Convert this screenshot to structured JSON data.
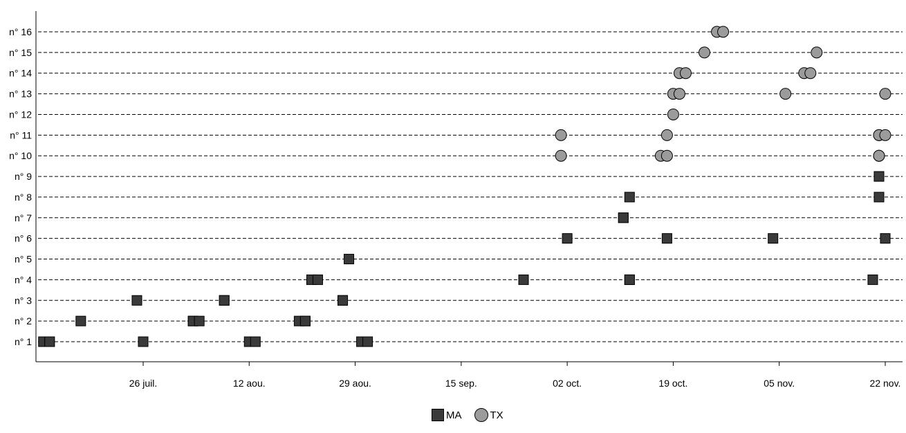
{
  "chart_data": {
    "type": "scatter",
    "title": "",
    "xlabel": "",
    "ylabel": "",
    "x_ticks": [
      "26 juil.",
      "12 aou.",
      "29 aou.",
      "15 sep.",
      "02 oct.",
      "19 oct.",
      "05 nov.",
      "22 nov."
    ],
    "x_tick_dates": [
      "07-26",
      "08-12",
      "08-29",
      "09-15",
      "10-02",
      "10-19",
      "11-05",
      "11-22"
    ],
    "x_range": [
      "07-10",
      "11-22"
    ],
    "y_categories": [
      "n° 1",
      "n° 2",
      "n° 3",
      "n° 4",
      "n° 5",
      "n° 6",
      "n° 7",
      "n° 8",
      "n° 9",
      "n° 10",
      "n° 11",
      "n° 12",
      "n° 13",
      "n° 14",
      "n° 15",
      "n° 16"
    ],
    "grid": "dashed horizontal lines",
    "legend_position": "bottom-center",
    "series": [
      {
        "name": "MA",
        "marker": "square",
        "color": "#3a3a3a",
        "points": [
          {
            "x": "07-10",
            "y": "n° 1"
          },
          {
            "x": "07-11",
            "y": "n° 1"
          },
          {
            "x": "07-11",
            "y": "n° 1"
          },
          {
            "x": "07-26",
            "y": "n° 1"
          },
          {
            "x": "08-12",
            "y": "n° 1"
          },
          {
            "x": "08-13",
            "y": "n° 1"
          },
          {
            "x": "08-30",
            "y": "n° 1"
          },
          {
            "x": "08-31",
            "y": "n° 1"
          },
          {
            "x": "07-16",
            "y": "n° 2"
          },
          {
            "x": "08-03",
            "y": "n° 2"
          },
          {
            "x": "08-03",
            "y": "n° 2"
          },
          {
            "x": "08-04",
            "y": "n° 2"
          },
          {
            "x": "08-20",
            "y": "n° 2"
          },
          {
            "x": "08-21",
            "y": "n° 2"
          },
          {
            "x": "08-21",
            "y": "n° 2"
          },
          {
            "x": "07-25",
            "y": "n° 3"
          },
          {
            "x": "08-08",
            "y": "n° 3"
          },
          {
            "x": "08-08",
            "y": "n° 3"
          },
          {
            "x": "08-27",
            "y": "n° 3"
          },
          {
            "x": "08-27",
            "y": "n° 3"
          },
          {
            "x": "08-22",
            "y": "n° 4"
          },
          {
            "x": "08-23",
            "y": "n° 4"
          },
          {
            "x": "09-25",
            "y": "n° 4"
          },
          {
            "x": "10-12",
            "y": "n° 4"
          },
          {
            "x": "10-12",
            "y": "n° 4"
          },
          {
            "x": "11-20",
            "y": "n° 4"
          },
          {
            "x": "08-28",
            "y": "n° 5"
          },
          {
            "x": "10-02",
            "y": "n° 6"
          },
          {
            "x": "10-18",
            "y": "n° 6"
          },
          {
            "x": "11-04",
            "y": "n° 6"
          },
          {
            "x": "11-22",
            "y": "n° 6"
          },
          {
            "x": "10-11",
            "y": "n° 7"
          },
          {
            "x": "10-11",
            "y": "n° 7"
          },
          {
            "x": "10-12",
            "y": "n° 8"
          },
          {
            "x": "11-21",
            "y": "n° 8"
          },
          {
            "x": "11-21",
            "y": "n° 9"
          },
          {
            "x": "11-21",
            "y": "n° 9"
          }
        ]
      },
      {
        "name": "TX",
        "marker": "circle",
        "color": "#9b9b9b",
        "points": [
          {
            "x": "10-01",
            "y": "n° 10"
          },
          {
            "x": "10-17",
            "y": "n° 10"
          },
          {
            "x": "10-18",
            "y": "n° 10"
          },
          {
            "x": "11-21",
            "y": "n° 10"
          },
          {
            "x": "11-21",
            "y": "n° 10"
          },
          {
            "x": "10-01",
            "y": "n° 11"
          },
          {
            "x": "10-18",
            "y": "n° 11"
          },
          {
            "x": "11-21",
            "y": "n° 11"
          },
          {
            "x": "11-21",
            "y": "n° 11"
          },
          {
            "x": "11-22",
            "y": "n° 11"
          },
          {
            "x": "10-19",
            "y": "n° 12"
          },
          {
            "x": "10-19",
            "y": "n° 13"
          },
          {
            "x": "10-20",
            "y": "n° 13"
          },
          {
            "x": "11-06",
            "y": "n° 13"
          },
          {
            "x": "11-22",
            "y": "n° 13"
          },
          {
            "x": "10-20",
            "y": "n° 14"
          },
          {
            "x": "10-21",
            "y": "n° 14"
          },
          {
            "x": "11-09",
            "y": "n° 14"
          },
          {
            "x": "11-10",
            "y": "n° 14"
          },
          {
            "x": "10-24",
            "y": "n° 15"
          },
          {
            "x": "11-11",
            "y": "n° 15"
          },
          {
            "x": "10-26",
            "y": "n° 16"
          },
          {
            "x": "10-27",
            "y": "n° 16"
          }
        ]
      }
    ]
  }
}
